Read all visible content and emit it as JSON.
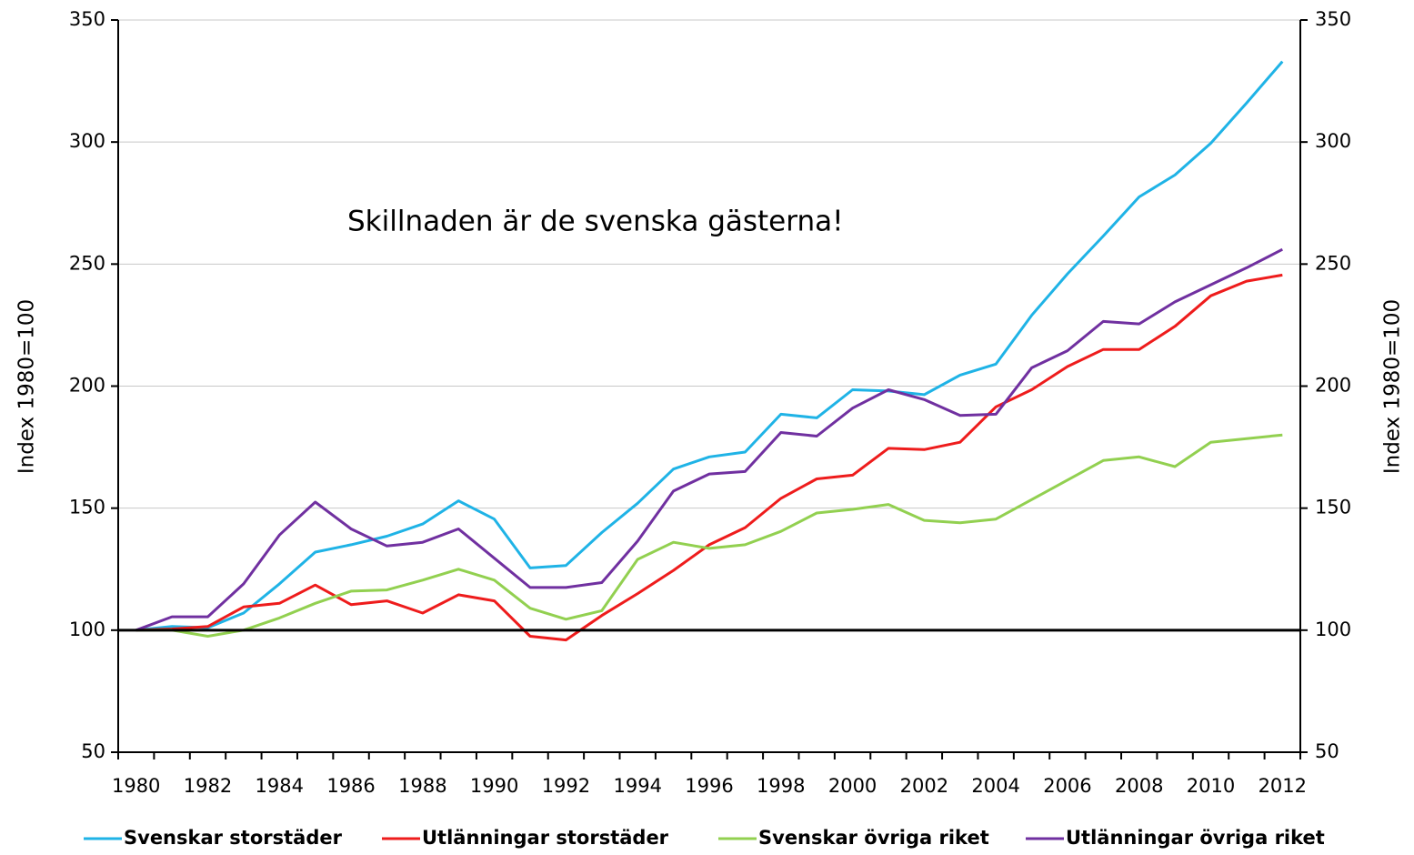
{
  "chart_data": {
    "type": "line",
    "annotation": "Skillnaden är de svenska gästerna!",
    "y_label": "Index 1980=100",
    "y2_label": "Index 1980=100",
    "categories": [
      "1980",
      null,
      "1982",
      null,
      "1984",
      null,
      "1986",
      null,
      "1988",
      null,
      "1990",
      null,
      "1992",
      null,
      "1994",
      null,
      "1996",
      null,
      "1998",
      null,
      "2000",
      null,
      "2002",
      null,
      "2004",
      null,
      "2006",
      null,
      "2008",
      null,
      "2010",
      null,
      "2012"
    ],
    "series": [
      {
        "name": "Svenskar storstäder",
        "color": "#1fb3e6",
        "values": [
          100,
          101.5,
          101,
          107,
          119,
          132,
          135,
          138.5,
          143.5,
          153,
          145.5,
          125.5,
          126.5,
          140,
          152,
          166,
          171,
          173,
          188.5,
          187,
          198.5,
          198,
          196.5,
          204.5,
          209,
          229,
          246,
          261.5,
          277.5,
          286.5,
          299.5,
          316,
          333
        ]
      },
      {
        "name": "Utlänningar storstäder",
        "color": "#ee1c1c",
        "values": [
          100,
          100.5,
          101.5,
          109.5,
          111,
          118.5,
          110.5,
          112,
          107,
          114.5,
          112,
          97.5,
          96,
          106,
          115,
          124.5,
          135,
          142,
          154,
          162,
          163.5,
          174.5,
          174,
          177,
          191.5,
          198.5,
          208,
          215,
          215,
          224.5,
          237,
          243,
          245.5
        ]
      },
      {
        "name": "Svenskar övriga riket",
        "color": "#92d050",
        "values": [
          100,
          100,
          97.5,
          100,
          105,
          111,
          116,
          116.5,
          120.5,
          125,
          120.5,
          109,
          104.5,
          108,
          129,
          136,
          133.5,
          135,
          140.5,
          148,
          149.5,
          151.5,
          145,
          144,
          145.5,
          153.5,
          161.5,
          169.5,
          171,
          167,
          177,
          178.5,
          180
        ]
      },
      {
        "name": "Utlänningar övriga riket",
        "color": "#7030a0",
        "values": [
          100,
          105.5,
          105.5,
          119,
          139,
          152.5,
          141.5,
          134.5,
          136,
          141.5,
          129.5,
          117.5,
          117.5,
          119.5,
          136.5,
          157,
          164,
          165,
          181,
          179.5,
          191,
          198.5,
          194.5,
          188,
          188.5,
          207.5,
          214.5,
          226.5,
          225.5,
          234.5,
          241.5,
          248.5,
          256
        ]
      }
    ],
    "ylim": [
      50,
      350
    ],
    "yticks": [
      50,
      100,
      150,
      200,
      250,
      300,
      350
    ],
    "y2lim": [
      50,
      350
    ],
    "y2ticks": [
      50,
      100,
      150,
      200,
      250,
      300,
      350
    ],
    "reference_line": 100,
    "grid": true,
    "legend": "bottom"
  }
}
